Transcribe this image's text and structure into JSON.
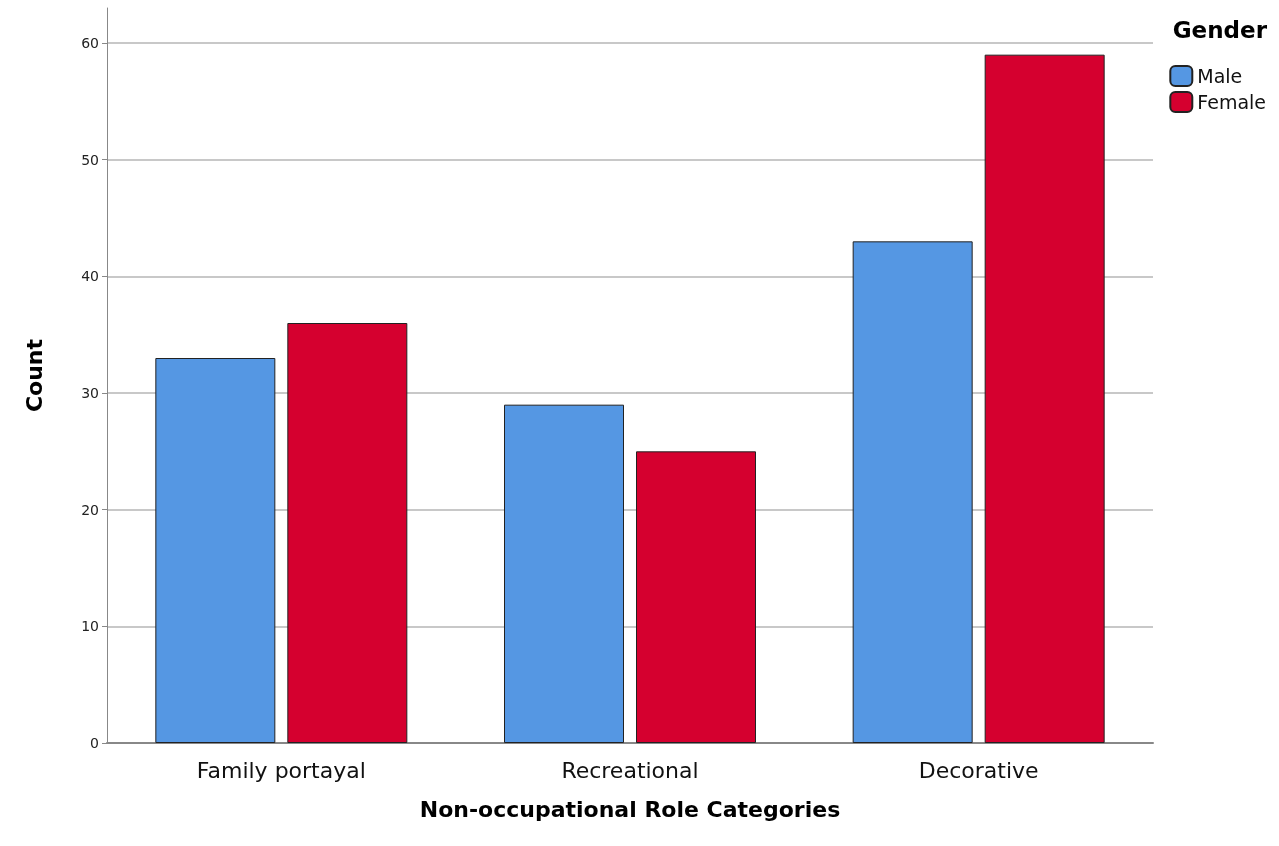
{
  "chart_data": {
    "type": "bar",
    "xlabel": "Non-occupational Role Categories",
    "ylabel": "Count",
    "legend_title": "Gender",
    "categories": [
      "Family portayal",
      "Recreational",
      "Decorative"
    ],
    "series": [
      {
        "name": "Male",
        "color": "#5597e3",
        "values": [
          33,
          29,
          43
        ]
      },
      {
        "name": "Female",
        "color": "#d5002f",
        "values": [
          36,
          25,
          59
        ]
      }
    ],
    "ylim": [
      0,
      63
    ],
    "yticks": [
      0,
      10,
      20,
      30,
      40,
      50,
      60
    ],
    "grid": "y",
    "legend": "top right"
  }
}
